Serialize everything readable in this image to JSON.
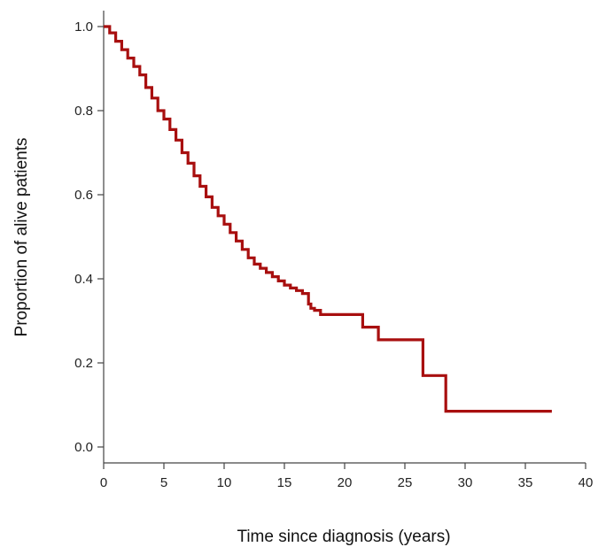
{
  "chart_data": {
    "type": "line",
    "title": "",
    "xlabel": "Time since diagnosis (years)",
    "ylabel": "Proportion of alive patients",
    "xlim": [
      0,
      40
    ],
    "ylim": [
      0,
      1.0
    ],
    "x_ticks": [
      0,
      5,
      10,
      15,
      20,
      25,
      30,
      35,
      40
    ],
    "x_tick_labels": [
      "0",
      "5",
      "10",
      "15",
      "20",
      "25",
      "30",
      "35",
      "40"
    ],
    "y_ticks": [
      0.0,
      0.2,
      0.4,
      0.6,
      0.8,
      1.0
    ],
    "y_tick_labels": [
      "0.0",
      "0.2",
      "0.4",
      "0.6",
      "0.8",
      "1.0"
    ],
    "grid": false,
    "legend": "none",
    "series": [
      {
        "color": "#a80f0f",
        "step": true,
        "x": [
          0,
          0.5,
          1.0,
          1.5,
          2.0,
          2.5,
          3.0,
          3.5,
          4.0,
          4.5,
          5.0,
          5.5,
          6.0,
          6.5,
          7.0,
          7.5,
          8.0,
          8.5,
          9.0,
          9.5,
          10.0,
          10.5,
          11.0,
          11.5,
          12.0,
          12.5,
          13.0,
          13.5,
          14.0,
          14.5,
          15.0,
          15.5,
          16.0,
          16.5,
          17.0,
          17.2,
          17.5,
          18.0,
          21.5,
          22.8,
          26.5,
          28.4,
          37.2
        ],
        "values": [
          1.0,
          0.985,
          0.965,
          0.945,
          0.925,
          0.905,
          0.885,
          0.855,
          0.83,
          0.8,
          0.78,
          0.755,
          0.73,
          0.7,
          0.675,
          0.645,
          0.62,
          0.595,
          0.57,
          0.55,
          0.53,
          0.51,
          0.49,
          0.47,
          0.45,
          0.435,
          0.425,
          0.415,
          0.405,
          0.395,
          0.385,
          0.378,
          0.372,
          0.365,
          0.34,
          0.33,
          0.325,
          0.315,
          0.285,
          0.255,
          0.17,
          0.085,
          0.085
        ]
      }
    ]
  }
}
